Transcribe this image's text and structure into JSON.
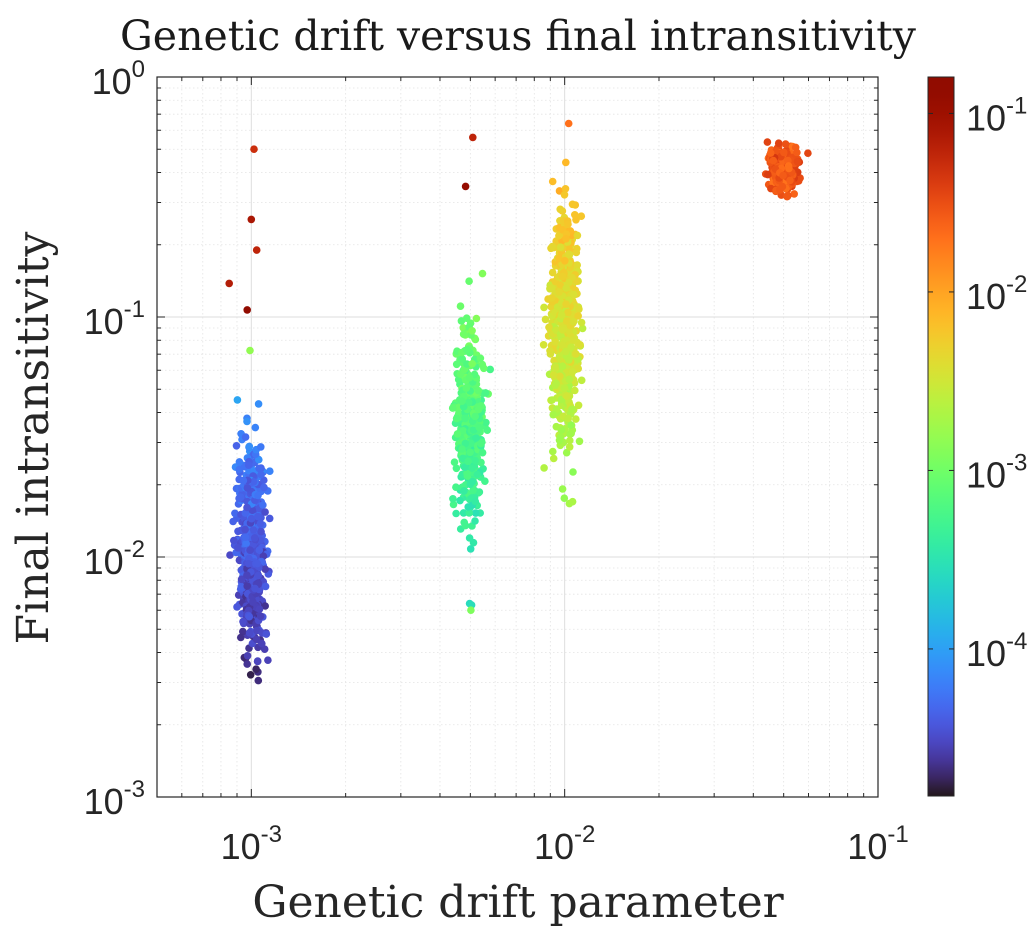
{
  "chart_data": {
    "type": "scatter",
    "title": "Genetic drift versus final intransitivity",
    "xlabel": "Genetic drift parameter",
    "ylabel": "Final intransitivity",
    "xscale": "log",
    "yscale": "log",
    "xlim": [
      0.0005,
      0.1
    ],
    "ylim": [
      0.001,
      1
    ],
    "grid": true,
    "minor_grid": true,
    "x_ticks": [
      {
        "value": 0.001,
        "base": "10",
        "exp": "-3"
      },
      {
        "value": 0.01,
        "base": "10",
        "exp": "-2"
      },
      {
        "value": 0.1,
        "base": "10",
        "exp": "-1"
      }
    ],
    "y_ticks": [
      {
        "value": 0.001,
        "base": "10",
        "exp": "-3"
      },
      {
        "value": 0.01,
        "base": "10",
        "exp": "-2"
      },
      {
        "value": 0.1,
        "base": "10",
        "exp": "-1"
      },
      {
        "value": 1,
        "base": "10",
        "exp": "0"
      }
    ],
    "colorbar": {
      "colormap": "turbo",
      "scale": "log",
      "clim": [
        1.5e-05,
        0.16
      ],
      "ticks": [
        {
          "value": 0.0001,
          "base": "10",
          "exp": "-4"
        },
        {
          "value": 0.001,
          "base": "10",
          "exp": "-3"
        },
        {
          "value": 0.01,
          "base": "10",
          "exp": "-2"
        },
        {
          "value": 0.1,
          "base": "10",
          "exp": "-1"
        }
      ]
    },
    "clusters": [
      {
        "x": 0.001,
        "n": 700,
        "y_log_mean": -1.95,
        "y_log_sd": 0.2,
        "y_log_min": -2.85,
        "y_log_max": -1.05,
        "c_log_min": -4.85,
        "c_log_max": -3.95,
        "corr": 0.9
      },
      {
        "x": 0.005,
        "n": 450,
        "y_log_mean": -1.45,
        "y_log_sd": 0.19,
        "y_log_min": -2.2,
        "y_log_max": -0.65,
        "c_log_min": -3.6,
        "c_log_max": -2.8,
        "corr": 0.9
      },
      {
        "x": 0.01,
        "n": 700,
        "y_log_mean": -1.05,
        "y_log_sd": 0.22,
        "y_log_min": -1.78,
        "y_log_max": -0.2,
        "c_log_min": -2.85,
        "c_log_max": -2.0,
        "corr": 0.9
      },
      {
        "x": 0.05,
        "n": 300,
        "y_log_mean": -0.39,
        "y_log_sd": 0.05,
        "y_log_min": -0.59,
        "y_log_max": -0.24,
        "c_log_min": -1.65,
        "c_log_max": -1.45,
        "corr": 0.2
      }
    ],
    "outliers": [
      {
        "x": 0.00102,
        "y": 0.5,
        "c": 0.05
      },
      {
        "x": 0.001,
        "y": 0.255,
        "c": 0.08
      },
      {
        "x": 0.00104,
        "y": 0.19,
        "c": 0.06
      },
      {
        "x": 0.00085,
        "y": 0.138,
        "c": 0.07
      },
      {
        "x": 0.00097,
        "y": 0.107,
        "c": 0.14
      },
      {
        "x": 0.00099,
        "y": 0.0725,
        "c": 0.0015
      },
      {
        "x": 0.00509,
        "y": 0.56,
        "c": 0.06
      },
      {
        "x": 0.00483,
        "y": 0.35,
        "c": 0.12
      },
      {
        "x": 0.00502,
        "y": 0.006,
        "c": 0.0012
      },
      {
        "x": 0.0103,
        "y": 0.64,
        "c": 0.02
      },
      {
        "x": 0.0106,
        "y": 0.017,
        "c": 0.002
      },
      {
        "x": 0.0086,
        "y": 0.0235,
        "c": 0.0022
      }
    ]
  }
}
